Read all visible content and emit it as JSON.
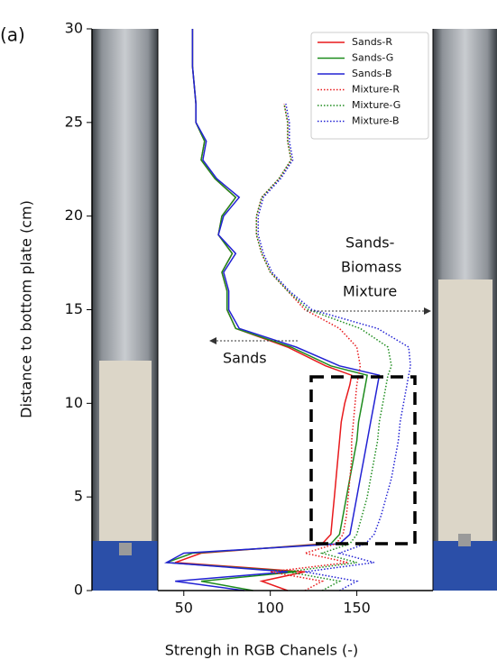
{
  "chart_data": {
    "type": "line",
    "panel_label": "(a)",
    "xlabel": "Strengh in RGB Chanels (-)",
    "ylabel": "Distance to bottom plate (cm)",
    "xlim": [
      35,
      194
    ],
    "ylim": [
      0,
      30
    ],
    "xticks": [
      50,
      100,
      150
    ],
    "yticks": [
      0,
      5,
      10,
      15,
      20,
      25,
      30
    ],
    "legend": "upper right",
    "y": [
      0,
      0.5,
      1,
      1.5,
      2,
      2.5,
      3,
      4,
      5,
      6,
      7,
      8,
      9,
      10,
      11,
      11.5,
      12,
      13,
      14,
      15,
      16,
      17,
      18,
      19,
      20,
      21,
      22,
      23,
      24,
      25,
      26,
      27,
      28,
      29,
      30
    ],
    "series": [
      {
        "name": "Sands-R",
        "color": "#e8191c",
        "style": "solid",
        "values": [
          110,
          95,
          120,
          45,
          60,
          130,
          135,
          136,
          137,
          138,
          139,
          140,
          141,
          143,
          146,
          147,
          132,
          110,
          80,
          75,
          75,
          72,
          78,
          70,
          72,
          80,
          68,
          60,
          62,
          57,
          57,
          56,
          55,
          55,
          55
        ]
      },
      {
        "name": "Sands-G",
        "color": "#1e8c1e",
        "style": "solid",
        "values": [
          90,
          60,
          115,
          40,
          55,
          135,
          140,
          142,
          144,
          146,
          148,
          150,
          151,
          153,
          155,
          156,
          135,
          112,
          80,
          75,
          75,
          72,
          78,
          70,
          72,
          80,
          68,
          60,
          62,
          57,
          57,
          56,
          55,
          55,
          55
        ]
      },
      {
        "name": "Sands-B",
        "color": "#2222d4",
        "style": "solid",
        "values": [
          85,
          45,
          110,
          40,
          50,
          140,
          146,
          148,
          150,
          152,
          154,
          156,
          158,
          160,
          162,
          163,
          140,
          115,
          82,
          76,
          76,
          73,
          80,
          70,
          73,
          82,
          69,
          61,
          63,
          57,
          57,
          56,
          55,
          55,
          55
        ]
      },
      {
        "name": "Mixture-R",
        "color": "#e8191c",
        "style": "dotted",
        "values": [
          120,
          130,
          100,
          145,
          120,
          138,
          142,
          144,
          145,
          146,
          147,
          147,
          148,
          149,
          150,
          151,
          152,
          150,
          140,
          120,
          110,
          100,
          95,
          92,
          92,
          95,
          105,
          112,
          110,
          110,
          108,
          null,
          null,
          null,
          null
        ]
      },
      {
        "name": "Mixture-G",
        "color": "#1e8c1e",
        "style": "dotted",
        "values": [
          130,
          140,
          110,
          150,
          130,
          146,
          150,
          153,
          156,
          158,
          160,
          162,
          163,
          165,
          167,
          168,
          170,
          168,
          152,
          122,
          110,
          100,
          95,
          92,
          92,
          95,
          105,
          112,
          110,
          110,
          108,
          null,
          null,
          null,
          null
        ]
      },
      {
        "name": "Mixture-B",
        "color": "#2222d4",
        "style": "dotted",
        "values": [
          140,
          150,
          120,
          160,
          140,
          155,
          160,
          164,
          167,
          170,
          172,
          174,
          175,
          177,
          179,
          180,
          181,
          180,
          162,
          124,
          111,
          101,
          96,
          93,
          93,
          96,
          106,
          113,
          111,
          111,
          109,
          null,
          null,
          null,
          null
        ]
      }
    ],
    "annotations": [
      "Sands-",
      "Biomass",
      "Mixture",
      "Sands"
    ]
  }
}
